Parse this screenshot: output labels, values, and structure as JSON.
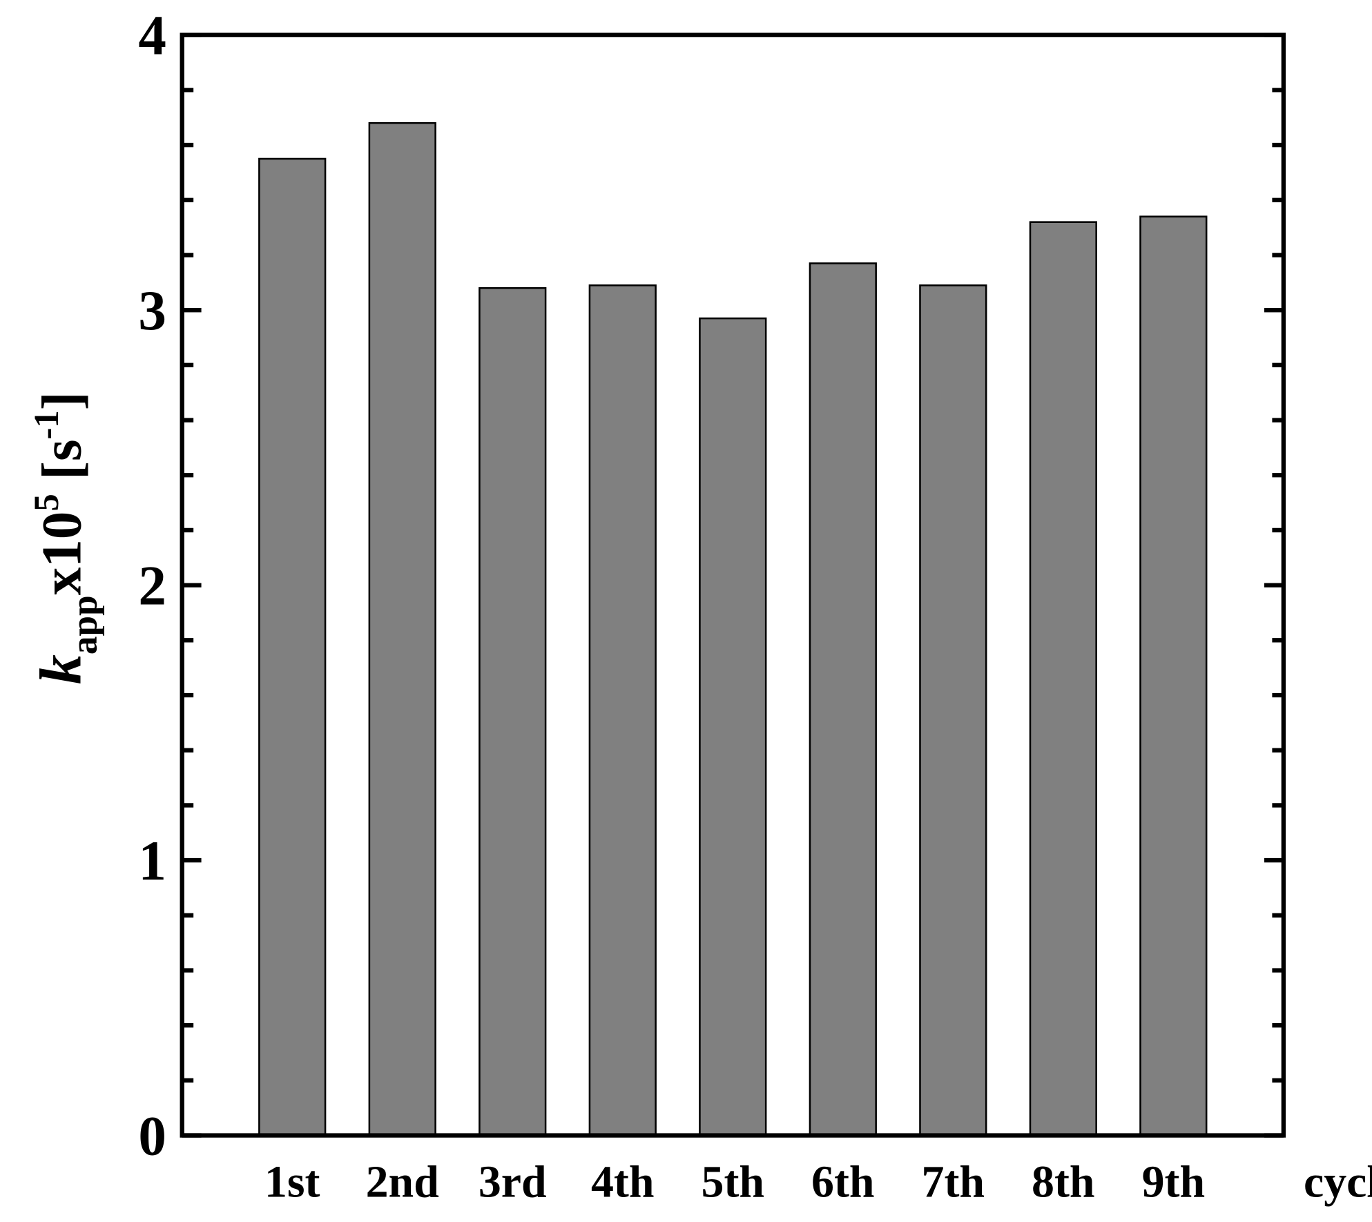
{
  "chart_data": {
    "type": "bar",
    "categories": [
      "1st",
      "2nd",
      "3rd",
      "4th",
      "5th",
      "6th",
      "7th",
      "8th",
      "9th"
    ],
    "values": [
      3.55,
      3.68,
      3.08,
      3.09,
      2.97,
      3.17,
      3.09,
      3.32,
      3.34
    ],
    "color": "#808080",
    "x_label": "cycle",
    "y_label_parts": [
      "k",
      "app",
      "x10",
      "5",
      " [s",
      "-1",
      "]"
    ],
    "ylim": [
      0,
      4
    ],
    "yticks": [
      0,
      1,
      2,
      3,
      4
    ],
    "minor_yticks": [
      0.2,
      0.4,
      0.6,
      0.8,
      1.2,
      1.4,
      1.6,
      1.8,
      2.2,
      2.4,
      2.6,
      2.8,
      3.2,
      3.4,
      3.6,
      3.8
    ],
    "grid": false
  }
}
